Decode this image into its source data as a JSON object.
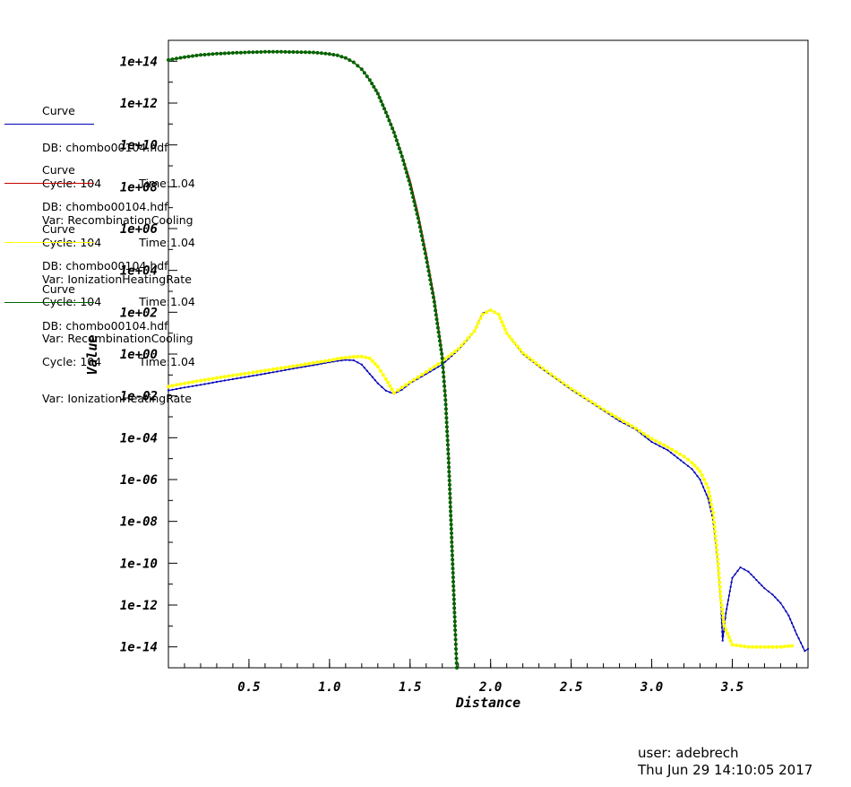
{
  "chart_data": {
    "type": "line",
    "xlabel": "Distance",
    "ylabel": "Value",
    "xlim": [
      0.0,
      3.97
    ],
    "ylog": true,
    "ylim_exp": [
      -15,
      15
    ],
    "xtick_labels": [
      "0.5",
      "1.0",
      "1.5",
      "2.0",
      "2.5",
      "3.0",
      "3.5"
    ],
    "xtick_values": [
      0.5,
      1.0,
      1.5,
      2.0,
      2.5,
      3.0,
      3.5
    ],
    "ytick_labels": [
      "1e+14",
      "1e+12",
      "1e+10",
      "1e+08",
      "1e+06",
      "1e+04",
      "1e+02",
      "1e+00",
      "1e-02",
      "1e-04",
      "1e-06",
      "1e-08",
      "1e-10",
      "1e-12",
      "1e-14"
    ],
    "ytick_exps": [
      14,
      12,
      10,
      8,
      6,
      4,
      2,
      0,
      -2,
      -4,
      -6,
      -8,
      -10,
      -12,
      -14
    ],
    "series": [
      {
        "name": "RecombinationCooling",
        "color": "#0000b4",
        "log10_points": [
          [
            0.0,
            -1.74
          ],
          [
            0.1,
            -1.6
          ],
          [
            0.2,
            -1.47
          ],
          [
            0.3,
            -1.33
          ],
          [
            0.4,
            -1.2
          ],
          [
            0.5,
            -1.07
          ],
          [
            0.6,
            -0.94
          ],
          [
            0.7,
            -0.8
          ],
          [
            0.8,
            -0.66
          ],
          [
            0.9,
            -0.53
          ],
          [
            1.0,
            -0.39
          ],
          [
            1.05,
            -0.33
          ],
          [
            1.1,
            -0.28
          ],
          [
            1.15,
            -0.3
          ],
          [
            1.2,
            -0.5
          ],
          [
            1.25,
            -0.95
          ],
          [
            1.3,
            -1.4
          ],
          [
            1.35,
            -1.75
          ],
          [
            1.4,
            -1.9
          ],
          [
            1.45,
            -1.7
          ],
          [
            1.5,
            -1.4
          ],
          [
            1.6,
            -0.95
          ],
          [
            1.7,
            -0.5
          ],
          [
            1.8,
            0.2
          ],
          [
            1.9,
            1.1
          ],
          [
            1.95,
            1.95
          ],
          [
            2.0,
            2.1
          ],
          [
            2.05,
            1.9
          ],
          [
            2.1,
            1.0
          ],
          [
            2.2,
            0.0
          ],
          [
            2.3,
            -0.6
          ],
          [
            2.4,
            -1.15
          ],
          [
            2.5,
            -1.7
          ],
          [
            2.6,
            -2.2
          ],
          [
            2.7,
            -2.7
          ],
          [
            2.8,
            -3.2
          ],
          [
            2.9,
            -3.6
          ],
          [
            3.0,
            -4.2
          ],
          [
            3.1,
            -4.6
          ],
          [
            3.2,
            -5.2
          ],
          [
            3.25,
            -5.5
          ],
          [
            3.3,
            -6.0
          ],
          [
            3.35,
            -6.9
          ],
          [
            3.38,
            -7.9
          ],
          [
            3.41,
            -10.0
          ],
          [
            3.43,
            -12.0
          ],
          [
            3.44,
            -13.7
          ],
          [
            3.46,
            -12.4
          ],
          [
            3.5,
            -10.7
          ],
          [
            3.55,
            -10.2
          ],
          [
            3.6,
            -10.4
          ],
          [
            3.65,
            -10.8
          ],
          [
            3.7,
            -11.2
          ],
          [
            3.75,
            -11.5
          ],
          [
            3.8,
            -11.9
          ],
          [
            3.85,
            -12.5
          ],
          [
            3.9,
            -13.4
          ],
          [
            3.95,
            -14.2
          ],
          [
            3.97,
            -14.1
          ]
        ]
      },
      {
        "name": "IonizationHeatingRate",
        "color": "#c80000",
        "log10_points": [
          [
            0.0,
            14.06
          ],
          [
            0.1,
            14.2
          ],
          [
            0.2,
            14.3
          ],
          [
            0.3,
            14.36
          ],
          [
            0.4,
            14.4
          ],
          [
            0.5,
            14.43
          ],
          [
            0.6,
            14.45
          ],
          [
            0.7,
            14.45
          ],
          [
            0.8,
            14.44
          ],
          [
            0.9,
            14.42
          ],
          [
            1.0,
            14.35
          ],
          [
            1.05,
            14.28
          ],
          [
            1.1,
            14.16
          ],
          [
            1.15,
            13.95
          ],
          [
            1.2,
            13.62
          ],
          [
            1.25,
            13.1
          ],
          [
            1.3,
            12.5
          ],
          [
            1.35,
            11.6
          ],
          [
            1.4,
            10.65
          ],
          [
            1.45,
            9.5
          ],
          [
            1.5,
            8.3
          ],
          [
            1.55,
            6.7
          ],
          [
            1.6,
            4.8
          ],
          [
            1.65,
            2.7
          ],
          [
            1.7,
            0.0
          ],
          [
            1.72,
            -2.0
          ],
          [
            1.74,
            -5.0
          ],
          [
            1.76,
            -9.0
          ],
          [
            1.78,
            -13.0
          ],
          [
            1.79,
            -15.0
          ]
        ]
      },
      {
        "name": "RecombinationCooling",
        "color": "#ffff00",
        "log10_points": [
          [
            0.0,
            -1.55
          ],
          [
            0.1,
            -1.4
          ],
          [
            0.2,
            -1.27
          ],
          [
            0.3,
            -1.14
          ],
          [
            0.4,
            -1.02
          ],
          [
            0.5,
            -0.91
          ],
          [
            0.6,
            -0.79
          ],
          [
            0.7,
            -0.67
          ],
          [
            0.8,
            -0.55
          ],
          [
            0.9,
            -0.42
          ],
          [
            1.0,
            -0.3
          ],
          [
            1.05,
            -0.22
          ],
          [
            1.1,
            -0.17
          ],
          [
            1.15,
            -0.13
          ],
          [
            1.2,
            -0.12
          ],
          [
            1.25,
            -0.2
          ],
          [
            1.3,
            -0.6
          ],
          [
            1.35,
            -1.2
          ],
          [
            1.4,
            -1.85
          ],
          [
            1.45,
            -1.6
          ],
          [
            1.5,
            -1.35
          ],
          [
            1.6,
            -0.85
          ],
          [
            1.7,
            -0.35
          ],
          [
            1.8,
            0.25
          ],
          [
            1.9,
            1.1
          ],
          [
            1.95,
            1.9
          ],
          [
            2.0,
            2.1
          ],
          [
            2.05,
            1.9
          ],
          [
            2.1,
            1.0
          ],
          [
            2.2,
            0.05
          ],
          [
            2.3,
            -0.55
          ],
          [
            2.4,
            -1.1
          ],
          [
            2.5,
            -1.65
          ],
          [
            2.6,
            -2.15
          ],
          [
            2.7,
            -2.65
          ],
          [
            2.8,
            -3.1
          ],
          [
            2.9,
            -3.55
          ],
          [
            3.0,
            -4.05
          ],
          [
            3.1,
            -4.45
          ],
          [
            3.2,
            -4.9
          ],
          [
            3.25,
            -5.2
          ],
          [
            3.3,
            -5.6
          ],
          [
            3.35,
            -6.4
          ],
          [
            3.38,
            -7.6
          ],
          [
            3.41,
            -9.8
          ],
          [
            3.43,
            -11.8
          ],
          [
            3.45,
            -13.0
          ],
          [
            3.5,
            -13.9
          ],
          [
            3.6,
            -14.0
          ],
          [
            3.7,
            -14.0
          ],
          [
            3.8,
            -14.0
          ],
          [
            3.87,
            -13.95
          ]
        ]
      },
      {
        "name": "IonizationHeatingRate",
        "color": "#006400",
        "log10_points": [
          [
            0.0,
            14.06
          ],
          [
            0.1,
            14.2
          ],
          [
            0.2,
            14.3
          ],
          [
            0.3,
            14.36
          ],
          [
            0.4,
            14.4
          ],
          [
            0.5,
            14.43
          ],
          [
            0.6,
            14.45
          ],
          [
            0.7,
            14.45
          ],
          [
            0.8,
            14.44
          ],
          [
            0.9,
            14.42
          ],
          [
            1.0,
            14.35
          ],
          [
            1.05,
            14.28
          ],
          [
            1.1,
            14.16
          ],
          [
            1.15,
            13.95
          ],
          [
            1.2,
            13.62
          ],
          [
            1.25,
            13.1
          ],
          [
            1.3,
            12.45
          ],
          [
            1.35,
            11.55
          ],
          [
            1.4,
            10.6
          ],
          [
            1.45,
            9.45
          ],
          [
            1.5,
            8.1
          ],
          [
            1.55,
            6.5
          ],
          [
            1.6,
            4.6
          ],
          [
            1.65,
            2.5
          ],
          [
            1.7,
            -0.2
          ],
          [
            1.72,
            -2.2
          ],
          [
            1.74,
            -5.2
          ],
          [
            1.76,
            -9.2
          ],
          [
            1.78,
            -13.2
          ],
          [
            1.79,
            -15.0
          ]
        ]
      }
    ]
  },
  "legend": [
    {
      "header": "Curve",
      "db": "DB: chombo00104.hdf",
      "cycle": "Cycle: 104",
      "time": "Time:1.04",
      "var": "Var: RecombinationCooling",
      "color": "#0000b4"
    },
    {
      "header": "Curve",
      "db": "DB: chombo00104.hdf",
      "cycle": "Cycle: 104",
      "time": "Time:1.04",
      "var": "Var: IonizationHeatingRate",
      "color": "#c80000"
    },
    {
      "header": "Curve",
      "db": "DB: chombo00104.hdf",
      "cycle": "Cycle: 104",
      "time": "Time:1.04",
      "var": "Var: RecombinationCooling",
      "color": "#ffff00"
    },
    {
      "header": "Curve",
      "db": "DB: chombo00104.hdf",
      "cycle": "Cycle: 104",
      "time": "Time:1.04",
      "var": "Var: IonizationHeatingRate",
      "color": "#006400"
    }
  ],
  "footer": {
    "user": "user: adebrech",
    "date": "Thu Jun 29 14:10:05 2017"
  }
}
